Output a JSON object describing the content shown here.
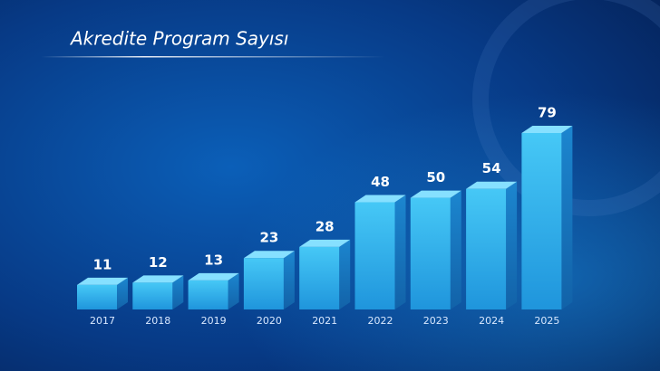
{
  "chart_data": {
    "type": "bar3d",
    "title": "Akredite Program Sayısı",
    "categories": [
      "2017",
      "2018",
      "2019",
      "2020",
      "2021",
      "2022",
      "2023",
      "2024",
      "2025"
    ],
    "values": [
      11,
      12,
      13,
      23,
      28,
      48,
      50,
      54,
      79
    ],
    "color": "#2fb6ef"
  }
}
